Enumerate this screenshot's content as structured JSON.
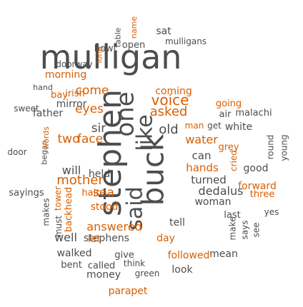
{
  "palette": {
    "grey": "#4d4d4d",
    "orange": "#d95f02",
    "green": "#1b9e77",
    "olive": "#b7a032"
  },
  "words": [
    {
      "id": "mulligan",
      "text": "mulligan",
      "color": "#4d4d4d"
    },
    {
      "id": "stephen",
      "text": "stephen",
      "color": "#4d4d4d"
    },
    {
      "id": "buck",
      "text": "buck",
      "color": "#4d4d4d"
    },
    {
      "id": "one",
      "text": "one",
      "color": "#4d4d4d"
    },
    {
      "id": "like",
      "text": "like",
      "color": "#4d4d4d"
    },
    {
      "id": "old",
      "text": "old",
      "color": "#4d4d4d"
    },
    {
      "id": "said",
      "text": "said",
      "color": "#4d4d4d"
    },
    {
      "id": "voice",
      "text": "voice",
      "color": "#d95f02"
    },
    {
      "id": "asked",
      "text": "asked",
      "color": "#d95f02"
    },
    {
      "id": "eyes",
      "text": "eyes",
      "color": "#d95f02"
    },
    {
      "id": "two",
      "text": "two",
      "color": "#d95f02"
    },
    {
      "id": "face",
      "text": "face",
      "color": "#d95f02"
    },
    {
      "id": "mother",
      "text": "mother",
      "color": "#d95f02"
    },
    {
      "id": "sea",
      "text": "sea",
      "color": "#d95f02"
    },
    {
      "id": "stood",
      "text": "stood",
      "color": "#d95f02"
    },
    {
      "id": "answered",
      "text": "answered",
      "color": "#d95f02"
    },
    {
      "id": "stephens",
      "text": "stephens",
      "color": "#4d4d4d"
    },
    {
      "id": "day",
      "text": "day",
      "color": "#d95f02"
    },
    {
      "id": "sat",
      "text": "sat",
      "color": "#4d4d4d"
    },
    {
      "id": "bowl",
      "text": "bowl",
      "color": "#4d4d4d"
    },
    {
      "id": "open",
      "text": "open",
      "color": "#4d4d4d"
    },
    {
      "id": "mulligans",
      "text": "mulligans",
      "color": "#4d4d4d"
    },
    {
      "id": "doorway",
      "text": "doorway",
      "color": "#4d4d4d"
    },
    {
      "id": "morning",
      "text": "morning",
      "color": "#d95f02"
    },
    {
      "id": "hand",
      "text": "hand",
      "color": "#4d4d4d"
    },
    {
      "id": "bay",
      "text": "bay",
      "color": "#d95f02"
    },
    {
      "id": "irish",
      "text": "irish",
      "color": "#d95f02"
    },
    {
      "id": "come",
      "text": "come",
      "color": "#d95f02"
    },
    {
      "id": "coming",
      "text": "coming",
      "color": "#d95f02"
    },
    {
      "id": "sweet",
      "text": "sweet",
      "color": "#4d4d4d"
    },
    {
      "id": "mirror",
      "text": "mirror",
      "color": "#4d4d4d"
    },
    {
      "id": "going",
      "text": "going",
      "color": "#d95f02"
    },
    {
      "id": "malachi",
      "text": "malachi",
      "color": "#4d4d4d"
    },
    {
      "id": "father",
      "text": "father",
      "color": "#4d4d4d"
    },
    {
      "id": "air",
      "text": "air",
      "color": "#4d4d4d"
    },
    {
      "id": "man",
      "text": "man",
      "color": "#d95f02"
    },
    {
      "id": "get",
      "text": "get",
      "color": "#4d4d4d"
    },
    {
      "id": "white",
      "text": "white",
      "color": "#4d4d4d"
    },
    {
      "id": "sir",
      "text": "sir",
      "color": "#4d4d4d"
    },
    {
      "id": "water",
      "text": "water",
      "color": "#d95f02"
    },
    {
      "id": "grey",
      "text": "grey",
      "color": "#d95f02"
    },
    {
      "id": "door",
      "text": "door",
      "color": "#4d4d4d"
    },
    {
      "id": "can",
      "text": "can",
      "color": "#4d4d4d"
    },
    {
      "id": "hands",
      "text": "hands",
      "color": "#d95f02"
    },
    {
      "id": "good",
      "text": "good",
      "color": "#4d4d4d"
    },
    {
      "id": "will",
      "text": "will",
      "color": "#4d4d4d"
    },
    {
      "id": "held",
      "text": "held",
      "color": "#4d4d4d"
    },
    {
      "id": "turned",
      "text": "turned",
      "color": "#4d4d4d"
    },
    {
      "id": "forward",
      "text": "forward",
      "color": "#d95f02"
    },
    {
      "id": "sayings",
      "text": "sayings",
      "color": "#4d4d4d"
    },
    {
      "id": "hair",
      "text": "hair",
      "color": "#d95f02"
    },
    {
      "id": "dedalus",
      "text": "dedalus",
      "color": "#4d4d4d"
    },
    {
      "id": "three",
      "text": "three",
      "color": "#d95f02"
    },
    {
      "id": "woman",
      "text": "woman",
      "color": "#4d4d4d"
    },
    {
      "id": "yes",
      "text": "yes",
      "color": "#4d4d4d"
    },
    {
      "id": "last",
      "text": "last",
      "color": "#4d4d4d"
    },
    {
      "id": "tell",
      "text": "tell",
      "color": "#4d4d4d"
    },
    {
      "id": "well",
      "text": "well",
      "color": "#4d4d4d"
    },
    {
      "id": "let",
      "text": "let",
      "color": "#d95f02"
    },
    {
      "id": "walked",
      "text": "walked",
      "color": "#4d4d4d"
    },
    {
      "id": "give",
      "text": "give",
      "color": "#4d4d4d"
    },
    {
      "id": "followed",
      "text": "followed",
      "color": "#d95f02"
    },
    {
      "id": "mean",
      "text": "mean",
      "color": "#4d4d4d"
    },
    {
      "id": "bent",
      "text": "bent",
      "color": "#4d4d4d"
    },
    {
      "id": "called",
      "text": "called",
      "color": "#4d4d4d"
    },
    {
      "id": "think",
      "text": "think",
      "color": "#4d4d4d"
    },
    {
      "id": "look",
      "text": "look",
      "color": "#4d4d4d"
    },
    {
      "id": "money",
      "text": "money",
      "color": "#4d4d4d"
    },
    {
      "id": "green",
      "text": "green",
      "color": "#4d4d4d"
    },
    {
      "id": "parapet",
      "text": "parapet",
      "color": "#d95f02"
    },
    {
      "id": "name",
      "text": "name",
      "color": "#d95f02"
    },
    {
      "id": "table",
      "text": "table",
      "color": "#4d4d4d"
    },
    {
      "id": "long",
      "text": "long",
      "color": "#d95f02"
    },
    {
      "id": "began",
      "text": "began",
      "color": "#4d4d4d"
    },
    {
      "id": "words",
      "text": "words",
      "color": "#d95f02"
    },
    {
      "id": "tower",
      "text": "tower",
      "color": "#d95f02"
    },
    {
      "id": "makes",
      "text": "makes",
      "color": "#4d4d4d"
    },
    {
      "id": "must",
      "text": "must",
      "color": "#4d4d4d"
    },
    {
      "id": "backhead",
      "text": "backhead",
      "color": "#d95f02"
    },
    {
      "id": "round",
      "text": "round",
      "color": "#4d4d4d"
    },
    {
      "id": "young",
      "text": "young",
      "color": "#4d4d4d"
    },
    {
      "id": "make",
      "text": "make",
      "color": "#4d4d4d"
    },
    {
      "id": "says",
      "text": "says",
      "color": "#4d4d4d"
    },
    {
      "id": "see",
      "text": "see",
      "color": "#4d4d4d"
    },
    {
      "id": "cried",
      "text": "cried",
      "color": "#d95f02"
    }
  ]
}
